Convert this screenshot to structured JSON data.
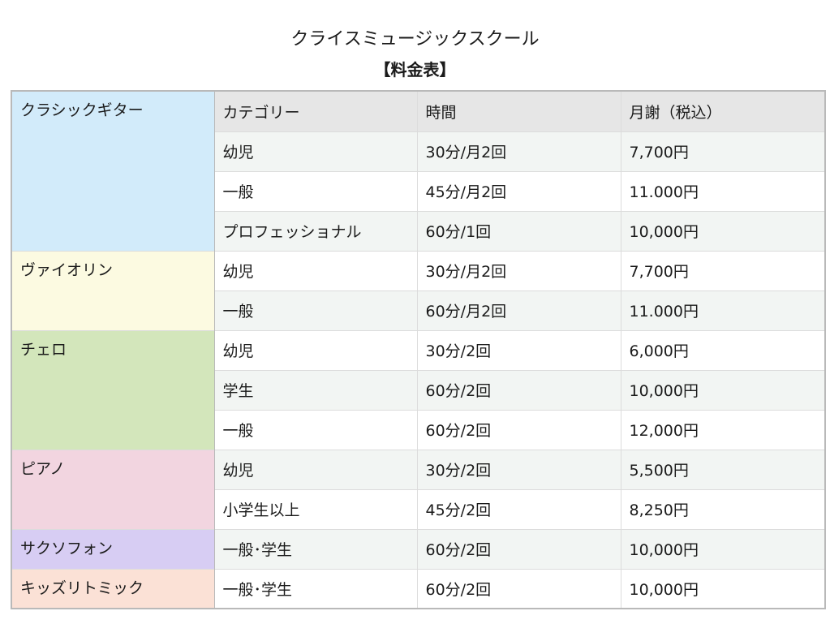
{
  "header": {
    "title": "クライスミュージックスクール",
    "subtitle": "【料金表】"
  },
  "columns": {
    "category": "カテゴリー",
    "time": "時間",
    "fee": "月謝（税込）"
  },
  "colors": {
    "classic_guitar": "#d2ebfa",
    "violin": "#fcfae1",
    "cello": "#d3e6bb",
    "piano": "#f2d5e0",
    "saxophone": "#d7cdf3",
    "kids_rhythmic": "#fbe1d6",
    "header_bg": "#e6e6e6",
    "alt_row_bg": "#f2f5f3"
  },
  "instruments": [
    {
      "name": "クラシックギター",
      "rows": [
        {
          "category": "幼児",
          "time": "30分/月2回",
          "fee": "7,700円"
        },
        {
          "category": "一般",
          "time": "45分/月2回",
          "fee": "11.000円"
        },
        {
          "category": "プロフェッショナル",
          "time": "60分/1回",
          "fee": "10,000円"
        }
      ]
    },
    {
      "name": "ヴァイオリン",
      "rows": [
        {
          "category": "幼児",
          "time": "30分/月2回",
          "fee": "7,700円"
        },
        {
          "category": "一般",
          "time": "60分/月2回",
          "fee": "11.000円"
        }
      ]
    },
    {
      "name": "チェロ",
      "rows": [
        {
          "category": "幼児",
          "time": "30分/2回",
          "fee": "6,000円"
        },
        {
          "category": "学生",
          "time": "60分/2回",
          "fee": "10,000円"
        },
        {
          "category": "一般",
          "time": "60分/2回",
          "fee": "12,000円"
        }
      ]
    },
    {
      "name": "ピアノ",
      "rows": [
        {
          "category": "幼児",
          "time": "30分/2回",
          "fee": "5,500円"
        },
        {
          "category": "小学生以上",
          "time": "45分/2回",
          "fee": "8,250円"
        }
      ]
    },
    {
      "name": "サクソフォン",
      "rows": [
        {
          "category": "一般･学生",
          "time": "60分/2回",
          "fee": "10,000円"
        }
      ]
    },
    {
      "name": "キッズリトミック",
      "rows": [
        {
          "category": "一般･学生",
          "time": "60分/2回",
          "fee": "10,000円"
        }
      ]
    }
  ]
}
